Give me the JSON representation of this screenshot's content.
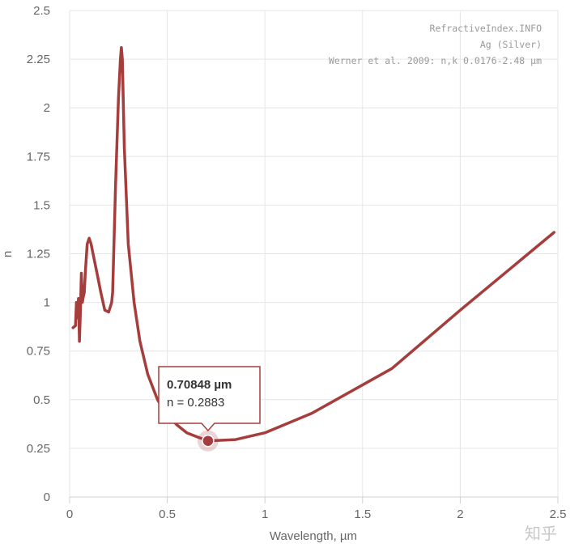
{
  "chart_data": {
    "type": "line",
    "credits": [
      "RefractiveIndex.INFO",
      "Ag (Silver)",
      "Werner et al. 2009: n,k 0.0176-2.48 µm"
    ],
    "xlabel": "Wavelength, µm",
    "ylabel": "n",
    "xlim": [
      0,
      2.5
    ],
    "ylim": [
      0,
      2.5
    ],
    "x_ticks": [
      "0",
      "0.5",
      "1",
      "1.5",
      "2",
      "2.5"
    ],
    "y_ticks": [
      "0",
      "0.25",
      "0.5",
      "0.75",
      "1",
      "1.25",
      "1.5",
      "1.75",
      "2",
      "2.25",
      "2.5"
    ],
    "grid": true,
    "series": [
      {
        "color": "#a63d3d",
        "x": [
          0.0176,
          0.03,
          0.035,
          0.04,
          0.045,
          0.05,
          0.055,
          0.06,
          0.065,
          0.07,
          0.075,
          0.08,
          0.09,
          0.1,
          0.11,
          0.12,
          0.14,
          0.16,
          0.18,
          0.2,
          0.215,
          0.22,
          0.235,
          0.25,
          0.26,
          0.265,
          0.27,
          0.28,
          0.3,
          0.33,
          0.36,
          0.4,
          0.45,
          0.5,
          0.55,
          0.6,
          0.65,
          0.70848,
          0.75,
          0.85,
          1.0,
          1.24,
          1.65,
          2.0,
          2.48
        ],
        "y": [
          0.87,
          0.88,
          1.0,
          0.92,
          1.02,
          0.8,
          0.95,
          1.15,
          1.0,
          1.03,
          1.05,
          1.15,
          1.3,
          1.33,
          1.3,
          1.25,
          1.15,
          1.05,
          0.96,
          0.95,
          1.0,
          1.05,
          1.6,
          2.05,
          2.25,
          2.31,
          2.25,
          1.8,
          1.3,
          1.0,
          0.8,
          0.63,
          0.5,
          0.42,
          0.37,
          0.33,
          0.31,
          0.2883,
          0.29,
          0.295,
          0.33,
          0.43,
          0.66,
          0.96,
          1.36
        ]
      }
    ],
    "tooltip": {
      "title": "0.70848 µm",
      "text": "n = 0.2883",
      "x": 0.70848,
      "y": 0.2883
    }
  },
  "watermark": "知乎"
}
